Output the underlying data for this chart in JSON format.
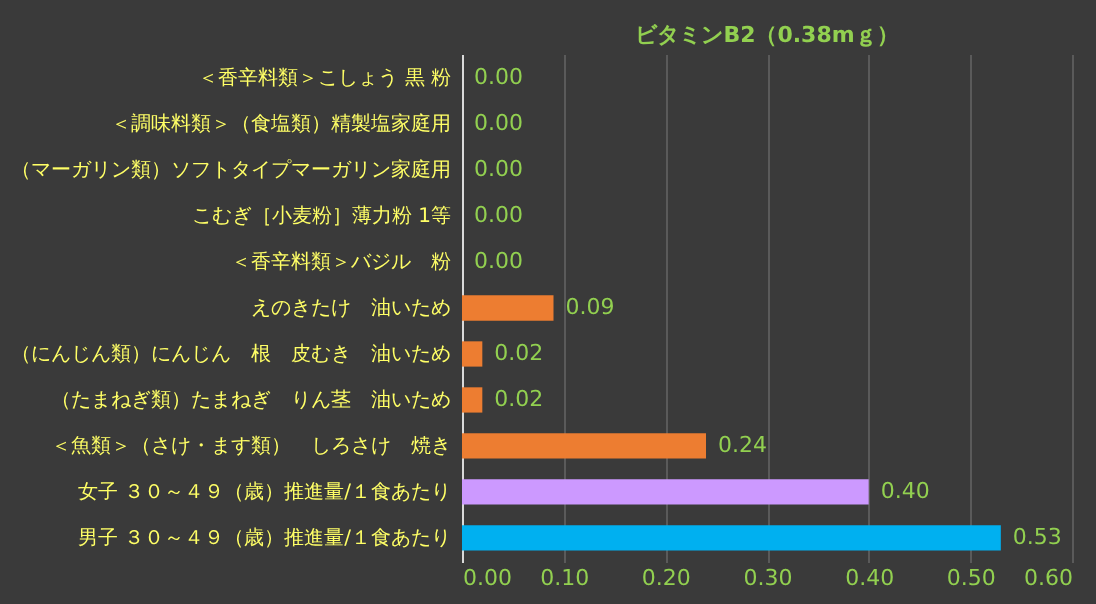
{
  "chart_data": {
    "type": "bar",
    "orientation": "horizontal",
    "title": "ビタミンB2（0.38mｇ）",
    "categories": [
      "＜香辛料類＞こしょう 黒 粉",
      "＜調味料類＞（食塩類）精製塩家庭用",
      "（マーガリン類）ソフトタイプマーガリン家庭用",
      "こむぎ［小麦粉］薄力粉 1等",
      "＜香辛料類＞バジル　粉",
      "えのきたけ　油いため",
      "（にんじん類）にんじん　根　皮むき　油いため",
      "（たまねぎ類）たまねぎ　りん茎　油いため",
      "＜魚類＞（さけ・ます類）　しろさけ　焼き",
      "女子 ３０～４９（歳）推進量/１食あたり",
      "男子 ３０～４９（歳）推進量/１食あたり"
    ],
    "values": [
      0,
      0,
      0,
      0,
      0,
      0.09,
      0.02,
      0.02,
      0.24,
      0.4,
      0.53
    ],
    "value_labels": [
      "0.00",
      "0.00",
      "0.00",
      "0.00",
      "0.00",
      "0.09",
      "0.02",
      "0.02",
      "0.24",
      "0.40",
      "0.53"
    ],
    "colors": [
      "#ed7d31",
      "#ed7d31",
      "#ed7d31",
      "#ed7d31",
      "#ed7d31",
      "#ed7d31",
      "#ed7d31",
      "#ed7d31",
      "#ed7d31",
      "#cc99ff",
      "#00b0f0"
    ],
    "xlim": [
      0,
      0.6
    ],
    "xticks": [
      {
        "value": 0,
        "label": "0.00"
      },
      {
        "value": 0.1,
        "label": "0.10"
      },
      {
        "value": 0.2,
        "label": "0.20"
      },
      {
        "value": 0.3,
        "label": "0.30"
      },
      {
        "value": 0.4,
        "label": "0.40"
      },
      {
        "value": 0.5,
        "label": "0.50"
      },
      {
        "value": 0.6,
        "label": "0.60"
      }
    ],
    "grid": "x"
  }
}
